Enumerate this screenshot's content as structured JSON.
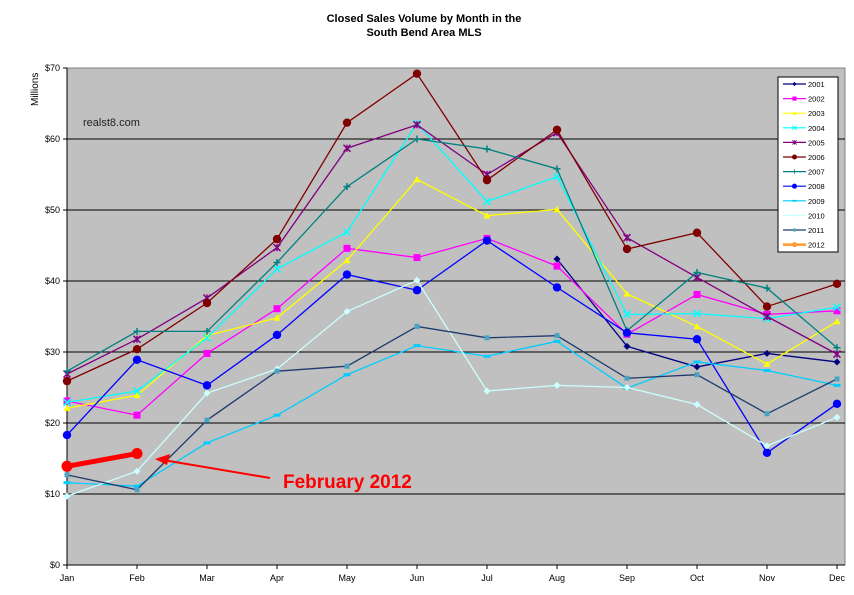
{
  "chart_data": {
    "type": "line",
    "title": [
      "Closed Sales Volume by Month in the",
      "South Bend Area MLS"
    ],
    "ylabel": "Millions",
    "xlabel": "",
    "ylim": [
      0,
      70
    ],
    "yticks": [
      0,
      10,
      20,
      30,
      40,
      50,
      60,
      70
    ],
    "ytick_labels": [
      "$0",
      "$10",
      "$20",
      "$30",
      "$40",
      "$50",
      "$60",
      "$70"
    ],
    "categories": [
      "Jan",
      "Feb",
      "Mar",
      "Apr",
      "May",
      "Jun",
      "Jul",
      "Aug",
      "Sep",
      "Oct",
      "Nov",
      "Dec"
    ],
    "grid": "horizontal",
    "background": "#C0C0C0",
    "legend_position": "top-right",
    "watermark": "realst8.com",
    "annotation": {
      "text": "February 2012",
      "color": "#FF0000",
      "points_to": "2012 Feb"
    },
    "series": [
      {
        "name": "2001",
        "color": "#000080",
        "marker": "diamond",
        "values": [
          null,
          null,
          null,
          null,
          null,
          null,
          null,
          43.1,
          30.8,
          27.9,
          29.8,
          28.6
        ]
      },
      {
        "name": "2002",
        "color": "#FF00FF",
        "marker": "square",
        "values": [
          23.1,
          21.1,
          29.8,
          36.1,
          44.6,
          43.3,
          46.0,
          42.1,
          32.5,
          38.1,
          35.3,
          35.8
        ]
      },
      {
        "name": "2003",
        "color": "#FFFF00",
        "marker": "triangle",
        "values": [
          22.1,
          23.9,
          32.3,
          34.8,
          42.9,
          54.3,
          49.2,
          50.1,
          38.2,
          33.6,
          28.3,
          34.3
        ]
      },
      {
        "name": "2004",
        "color": "#00FFFF",
        "marker": "x",
        "values": [
          22.9,
          24.5,
          32.0,
          41.7,
          46.9,
          62.2,
          51.2,
          54.7,
          35.3,
          35.4,
          34.7,
          36.3
        ]
      },
      {
        "name": "2005",
        "color": "#800080",
        "marker": "star",
        "values": [
          26.9,
          31.8,
          37.6,
          44.7,
          58.7,
          62.0,
          55.0,
          60.9,
          46.1,
          40.5,
          35.0,
          29.7
        ]
      },
      {
        "name": "2006",
        "color": "#800000",
        "marker": "circle",
        "values": [
          25.9,
          30.4,
          36.9,
          45.9,
          62.3,
          69.2,
          54.2,
          61.3,
          44.5,
          46.8,
          36.4,
          39.6
        ]
      },
      {
        "name": "2007",
        "color": "#008080",
        "marker": "plus",
        "values": [
          27.3,
          32.9,
          32.9,
          42.6,
          53.3,
          60.0,
          58.6,
          55.8,
          33.0,
          41.2,
          39.0,
          30.6
        ]
      },
      {
        "name": "2008",
        "color": "#0000FF",
        "marker": "circle",
        "values": [
          18.3,
          28.9,
          25.3,
          32.4,
          40.9,
          38.7,
          45.7,
          39.1,
          32.7,
          31.8,
          15.8,
          22.7
        ]
      },
      {
        "name": "2009",
        "color": "#00CCFF",
        "marker": "dash",
        "values": [
          11.6,
          11.1,
          17.2,
          21.1,
          26.8,
          30.9,
          29.4,
          31.5,
          24.9,
          28.6,
          27.4,
          25.3
        ]
      },
      {
        "name": "2010",
        "color": "#CCFFFF",
        "marker": "diamond",
        "values": [
          9.7,
          13.2,
          24.2,
          27.6,
          35.7,
          40.1,
          24.5,
          25.3,
          25.0,
          22.6,
          16.8,
          20.8
        ]
      },
      {
        "name": "2011",
        "color": "#1F3A6E",
        "marker": "smallsquare",
        "values": [
          12.7,
          10.6,
          20.4,
          27.3,
          28.0,
          33.6,
          32.0,
          32.3,
          26.3,
          26.8,
          21.3,
          26.2
        ]
      },
      {
        "name": "2012",
        "color": "#FF0000",
        "legend_color": "#FF9933",
        "marker": "circle",
        "values": [
          13.9,
          15.7,
          null,
          null,
          null,
          null,
          null,
          null,
          null,
          null,
          null,
          null
        ]
      }
    ]
  }
}
